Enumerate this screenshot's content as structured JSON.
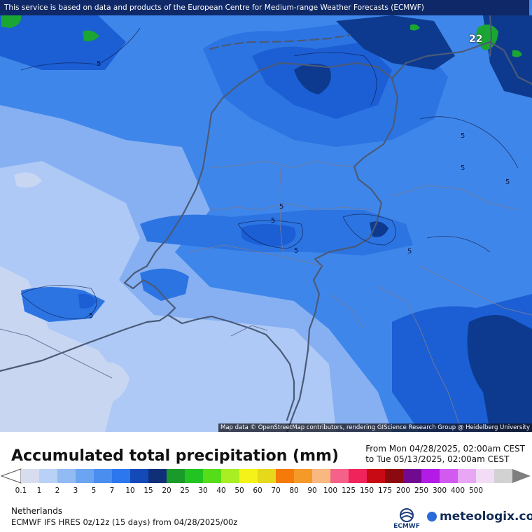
{
  "map": {
    "top_notice": "This service is based on data and products of the European Centre for Medium-range Weather Forecasts (ECMWF)",
    "attribution": "Map data © OpenStreetMap contributors, rendering GIScience Research Group @ Heidelberg University",
    "contour_labels": [
      "5",
      "5",
      "5",
      "5",
      "5",
      "5",
      "5",
      "5",
      "5"
    ],
    "max_label": "22",
    "colors": {
      "very_light": "#c9d6f2",
      "light": "#aec9f5",
      "mid_light": "#86b0f2",
      "mid": "#5b96ee",
      "strong": "#3a7de6",
      "deep": "#1c5ed4",
      "dark": "#0d3a8f",
      "green": "#1aa632"
    }
  },
  "legend": {
    "title": "Accumulated total precipitation (mm)",
    "from": "From Mon 04/28/2025, 02:00am CEST",
    "to": "to Tue 05/13/2025, 02:00am CEST",
    "tick_labels": [
      "0.1",
      "1",
      "2",
      "3",
      "5",
      "7",
      "10",
      "15",
      "20",
      "25",
      "30",
      "40",
      "50",
      "60",
      "70",
      "80",
      "90",
      "100",
      "125",
      "150",
      "175",
      "200",
      "250",
      "300",
      "400",
      "500"
    ],
    "bin_colors": [
      "#d8dcef",
      "#b9d1f6",
      "#93bbf3",
      "#6ba4f0",
      "#4a8ff0",
      "#2c77ee",
      "#134ab8",
      "#0f2f78",
      "#1a9a2a",
      "#22c422",
      "#55dd1a",
      "#a8ee22",
      "#f5f21a",
      "#e6d81a",
      "#f57a0a",
      "#f59a28",
      "#f8b880",
      "#f4628a",
      "#f0245a",
      "#c80a14",
      "#8a0a10",
      "#720a90",
      "#b21ae6",
      "#d35af0",
      "#e8a6f5",
      "#f2dcf6",
      "#d2d2d2"
    ],
    "region": "Netherlands",
    "model": "ECMWF IFS HRES 0z/12z (15 days) from  04/28/2025/00z",
    "ecmwf_logo_text": "ECMWF",
    "brand": "meteologix.com"
  }
}
